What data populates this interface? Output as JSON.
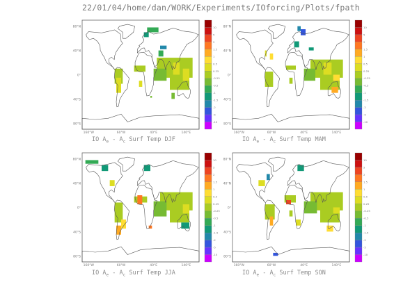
{
  "header": {
    "path": "22/01/04/home/dan/WORK/Experiments/IOforcing/Plots/fpath"
  },
  "colors": {
    "land_outline": "#555555",
    "anomaly_shades": [
      "#cc00ff",
      "#6633ff",
      "#3355dd",
      "#2288aa",
      "#119977",
      "#33aa55",
      "#77bb33",
      "#aacc22",
      "#dddd22",
      "#ffdd33",
      "#ffaa22",
      "#ff7722",
      "#ee4422",
      "#cc1111",
      "#990000"
    ]
  },
  "panels": [
    {
      "id": "djf",
      "title": {
        "prefix": "IO A",
        "sub1": "e",
        "middle": " - A",
        "sub2": "c",
        "suffix": " Surf Temp DJF"
      }
    },
    {
      "id": "mam",
      "title": {
        "prefix": "IO A",
        "sub1": "e",
        "middle": " - A",
        "sub2": "c",
        "suffix": " Surf Temp MAM"
      }
    },
    {
      "id": "jja",
      "title": {
        "prefix": "IO A",
        "sub1": "e",
        "middle": " - A",
        "sub2": "c",
        "suffix": " Surf Temp JJA"
      }
    },
    {
      "id": "son",
      "title": {
        "prefix": "IO A",
        "sub1": "e",
        "middle": " - A",
        "sub2": "c",
        "suffix": " Surf Temp SON"
      }
    }
  ],
  "chart_data": [
    {
      "type": "heatmap",
      "title": "IO Ae - Ac Surf Temp DJF",
      "xlabel": "",
      "ylabel": "",
      "x_ticks": [
        "160°W",
        "60°W",
        "40°E",
        "140°E"
      ],
      "y_ticks": [
        "80°N",
        "40°N",
        "0°",
        "40°S",
        "80°S"
      ],
      "colorbar_ticks": [
        10,
        5,
        2,
        1.5,
        1,
        0.5,
        0.25,
        -0.25,
        -0.5,
        -1,
        -1.5,
        -2,
        -5,
        -10
      ],
      "grid": false,
      "legend": "right"
    },
    {
      "type": "heatmap",
      "title": "IO Ae - Ac Surf Temp MAM",
      "xlabel": "",
      "ylabel": "",
      "x_ticks": [
        "160°W",
        "60°W",
        "40°E",
        "140°E"
      ],
      "y_ticks": [
        "80°N",
        "40°N",
        "0°",
        "40°S",
        "80°S"
      ],
      "colorbar_ticks": [
        10,
        5,
        2,
        1.5,
        1,
        0.5,
        0.25,
        -0.25,
        -0.5,
        -1,
        -1.5,
        -2,
        -5,
        -10
      ],
      "grid": false,
      "legend": "right"
    },
    {
      "type": "heatmap",
      "title": "IO Ae - Ac Surf Temp JJA",
      "xlabel": "",
      "ylabel": "",
      "x_ticks": [
        "160°W",
        "60°W",
        "40°E",
        "140°E"
      ],
      "y_ticks": [
        "80°N",
        "40°N",
        "0°",
        "40°S",
        "80°S"
      ],
      "colorbar_ticks": [
        10,
        5,
        2,
        1.5,
        1,
        0.5,
        0.25,
        -0.25,
        -0.5,
        -1,
        -1.5,
        -2,
        -5,
        -10
      ],
      "grid": false,
      "legend": "right"
    },
    {
      "type": "heatmap",
      "title": "IO Ae - Ac Surf Temp SON",
      "xlabel": "",
      "ylabel": "",
      "x_ticks": [
        "160°W",
        "60°W",
        "40°E",
        "140°E"
      ],
      "y_ticks": [
        "80°N",
        "40°N",
        "0°",
        "40°S",
        "80°S"
      ],
      "colorbar_ticks": [
        10,
        5,
        2,
        1.5,
        1,
        0.5,
        0.25,
        -0.25,
        -0.5,
        -1,
        -1.5,
        -2,
        -5,
        -10
      ],
      "grid": false,
      "legend": "right"
    }
  ]
}
